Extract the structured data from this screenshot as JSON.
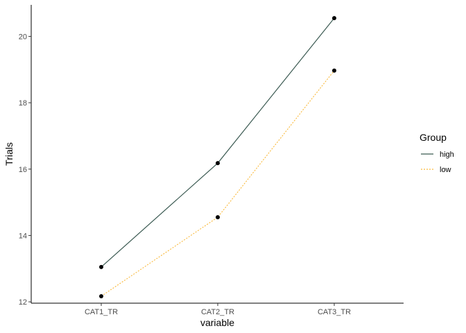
{
  "chart_data": {
    "type": "line",
    "categories": [
      "CAT1_TR",
      "CAT2_TR",
      "CAT3_TR"
    ],
    "series": [
      {
        "name": "high",
        "values": [
          13.05,
          16.18,
          20.55
        ],
        "color": "#3b5a52",
        "dash": "solid"
      },
      {
        "name": "low",
        "values": [
          12.17,
          14.55,
          18.97
        ],
        "color": "#f9b93a",
        "dash": "dotted"
      }
    ],
    "xlabel": "variable",
    "ylabel": "Trials",
    "ylim": [
      11.96,
      20.95
    ],
    "yticks": [
      12,
      14,
      16,
      18,
      20
    ],
    "legend": {
      "title": "Group",
      "position": "right"
    },
    "grid": false,
    "point_color": "#000000"
  }
}
